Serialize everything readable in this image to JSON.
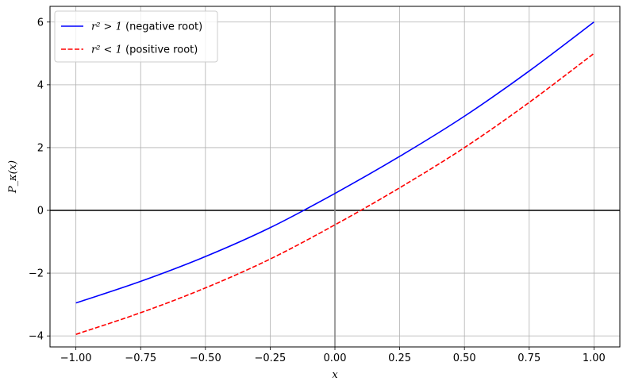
{
  "chart_data": {
    "type": "line",
    "xlabel": "x",
    "ylabel": "P_κ(x)",
    "xlim": [
      -1.1,
      1.1
    ],
    "ylim": [
      -4.35,
      6.5
    ],
    "xticks": [
      -1.0,
      -0.75,
      -0.5,
      -0.25,
      0.0,
      0.25,
      0.5,
      0.75,
      1.0
    ],
    "xtick_labels": [
      "−1.00",
      "−0.75",
      "−0.50",
      "−0.25",
      "0.00",
      "0.25",
      "0.50",
      "0.75",
      "1.00"
    ],
    "yticks": [
      -4,
      -2,
      0,
      2,
      4,
      6
    ],
    "ytick_labels": [
      "−4",
      "−2",
      "0",
      "2",
      "4",
      "6"
    ],
    "grid": true,
    "legend_position": "top-left",
    "reference_lines": [
      {
        "orientation": "horizontal",
        "value": 0,
        "color": "#000000"
      },
      {
        "orientation": "vertical",
        "value": 0,
        "color": "#808080"
      }
    ],
    "series": [
      {
        "name": "r² > 1 (negative root)",
        "legend_math": "r² > 1",
        "legend_rest": " (negative root)",
        "color": "#0000ff",
        "style": "solid",
        "x": [
          -1.0,
          -0.75,
          -0.5,
          -0.25,
          0.0,
          0.25,
          0.5,
          0.75,
          1.0
        ],
        "y": [
          -2.95,
          -2.26,
          -1.47,
          -0.55,
          0.54,
          1.72,
          3.0,
          4.44,
          6.0
        ]
      },
      {
        "name": "r² < 1 (positive root)",
        "legend_math": "r² < 1",
        "legend_rest": " (positive root)",
        "color": "#ff0000",
        "style": "dashed",
        "x": [
          -1.0,
          -0.75,
          -0.5,
          -0.25,
          0.0,
          0.25,
          0.5,
          0.75,
          1.0
        ],
        "y": [
          -3.95,
          -3.26,
          -2.47,
          -1.55,
          -0.46,
          0.72,
          2.0,
          3.44,
          5.0
        ]
      }
    ]
  }
}
